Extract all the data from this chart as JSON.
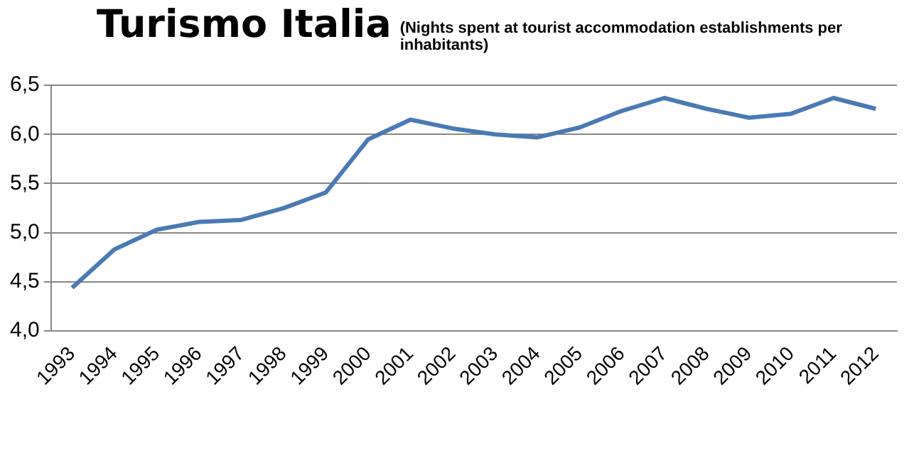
{
  "chart_data": {
    "type": "line",
    "title": "Turismo Italia",
    "subtitle": "(Nights spent at tourist accommodation  establishments per inhabitants)",
    "categories": [
      "1993",
      "1994",
      "1995",
      "1996",
      "1997",
      "1998",
      "1999",
      "2000",
      "2001",
      "2002",
      "2003",
      "2004",
      "2005",
      "2006",
      "2007",
      "2008",
      "2009",
      "2010",
      "2011",
      "2012"
    ],
    "series": [
      {
        "color": "#4a7ab4",
        "values": [
          4.44,
          4.83,
          5.03,
          5.11,
          5.13,
          5.25,
          5.41,
          5.95,
          6.15,
          6.06,
          6.0,
          5.97,
          6.07,
          6.24,
          6.37,
          6.26,
          6.17,
          6.21,
          6.37,
          6.26
        ]
      }
    ],
    "ylim": [
      4.0,
      6.5
    ],
    "yticks": [
      {
        "value": 4.0,
        "label": "4,0"
      },
      {
        "value": 4.5,
        "label": "4,5"
      },
      {
        "value": 5.0,
        "label": "5,0"
      },
      {
        "value": 5.5,
        "label": "5,5"
      },
      {
        "value": 6.0,
        "label": "6,0"
      },
      {
        "value": 6.5,
        "label": "6,5"
      }
    ],
    "grid": "y",
    "legend": false,
    "marker": "none",
    "line_style": "solid"
  }
}
